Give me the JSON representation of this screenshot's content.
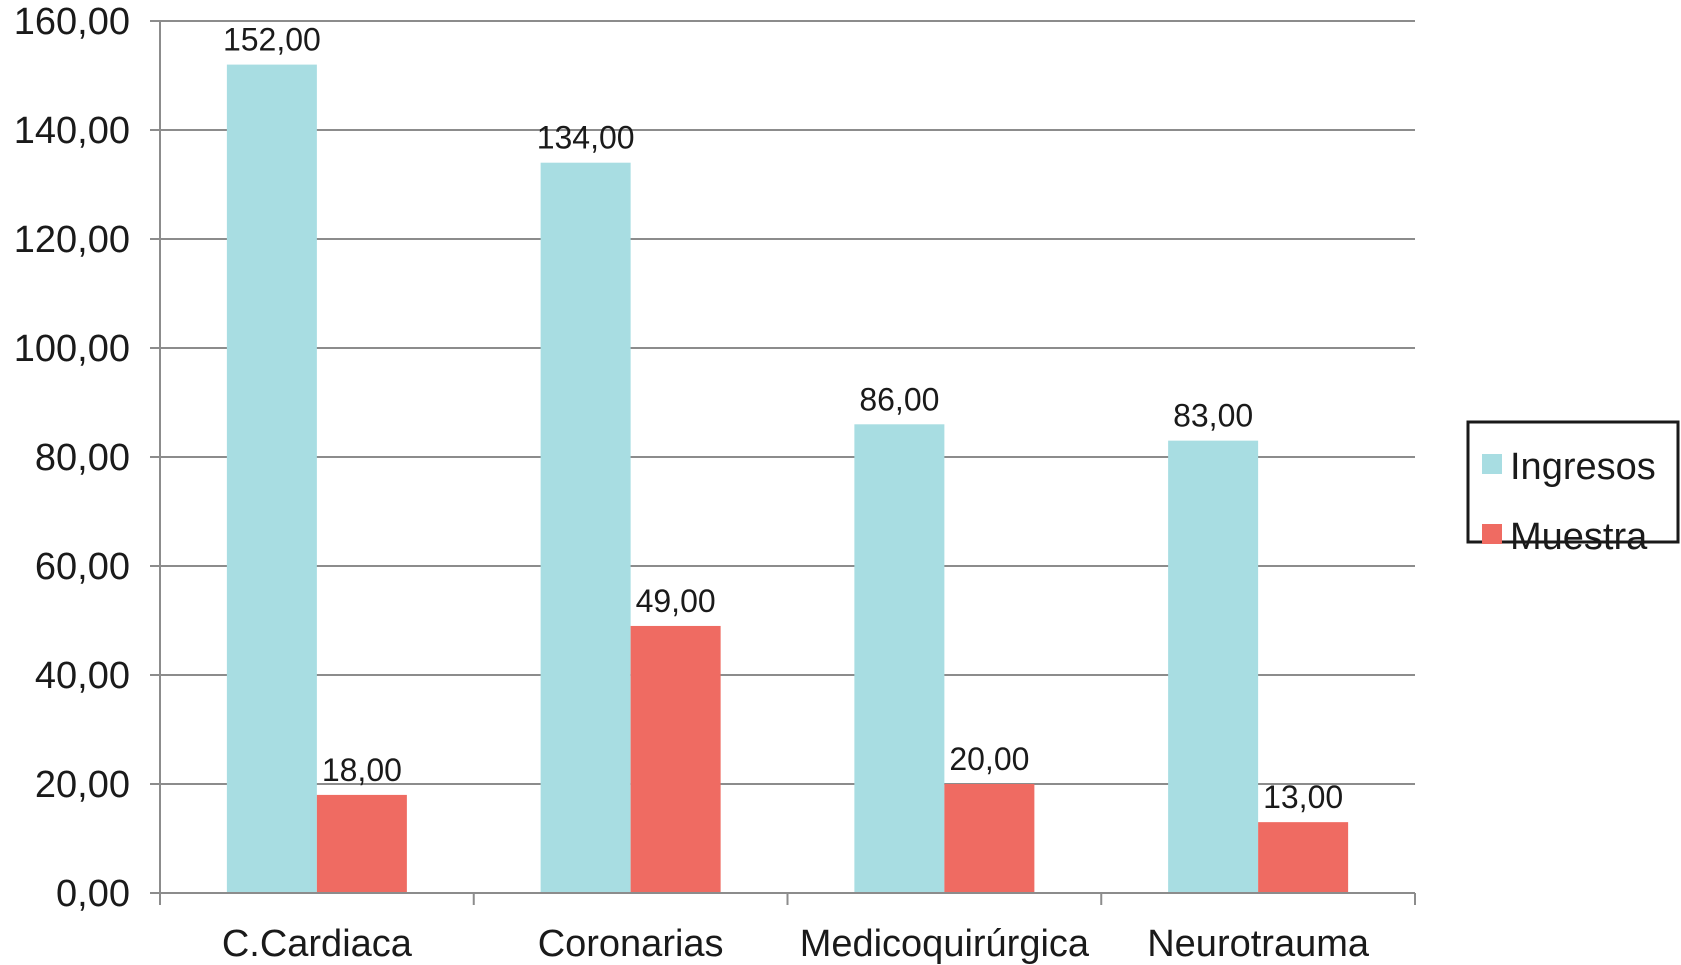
{
  "chart_data": {
    "type": "bar",
    "categories": [
      "C.Cardiaca",
      "Coronarias",
      "Medicoquirúrgica",
      "Neurotrauma"
    ],
    "series": [
      {
        "name": "Ingresos",
        "values": [
          152,
          134,
          86,
          83
        ],
        "labels": [
          "152,00",
          "134,00",
          "86,00",
          "83,00"
        ],
        "color": "#a8dde2"
      },
      {
        "name": "Muestra",
        "values": [
          18,
          49,
          20,
          13
        ],
        "labels": [
          "18,00",
          "49,00",
          "20,00",
          "13,00"
        ],
        "color": "#ef6b62"
      }
    ],
    "ylim": [
      0,
      160
    ],
    "yticks": [
      0,
      20,
      40,
      60,
      80,
      100,
      120,
      140,
      160
    ],
    "ytick_labels": [
      "0,00",
      "20,00",
      "40,00",
      "60,00",
      "80,00",
      "100,00",
      "120,00",
      "140,00",
      "160,00"
    ],
    "grid": true,
    "legend": "right"
  }
}
